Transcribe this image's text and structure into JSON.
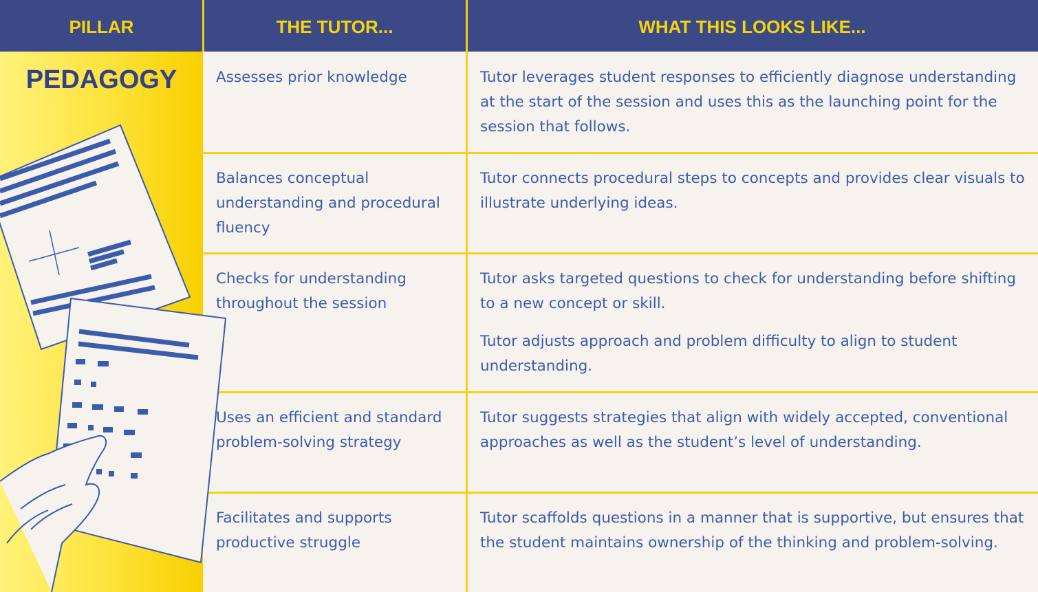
{
  "header": {
    "columns": [
      "PILLAR",
      "THE TUTOR...",
      "WHAT THIS LOOKS LIKE..."
    ]
  },
  "pillar": "PEDAGOGY",
  "rows": [
    {
      "tutor": "Assesses prior knowledge",
      "looks_like": [
        "Tutor leverages student responses to efficiently diagnose understanding at the start of the session and uses this as the launching point for the session that follows."
      ]
    },
    {
      "tutor": "Balances conceptual understanding and procedural fluency",
      "looks_like": [
        "Tutor connects procedural steps to concepts and provides clear visuals to illustrate underlying ideas."
      ]
    },
    {
      "tutor": "Checks for understanding throughout the session",
      "looks_like": [
        "Tutor asks targeted questions to check for understanding before shifting to a new concept or skill.",
        "Tutor adjusts approach and problem difficulty to align to student understanding."
      ]
    },
    {
      "tutor": "Uses an efficient and standard problem-solving strategy",
      "looks_like": [
        "Tutor suggests strategies that align with widely accepted, conventional approaches as well as the student’s level of understanding."
      ]
    },
    {
      "tutor": "Facilitates and supports productive struggle",
      "looks_like": [
        "Tutor scaffolds questions in a manner that is supportive, but ensures that the student maintains ownership of the thinking and problem-solving."
      ]
    }
  ]
}
